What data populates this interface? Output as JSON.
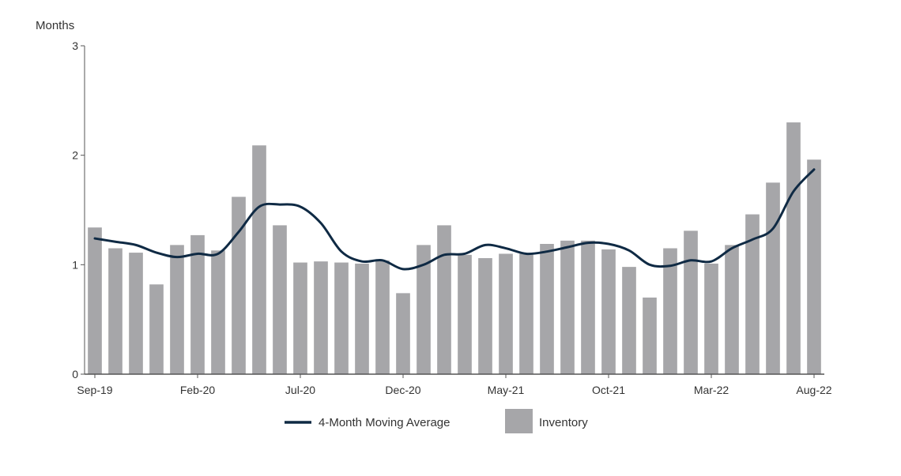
{
  "chart_data": {
    "type": "bar",
    "title": "",
    "xlabel": "",
    "ylabel": "Months",
    "ylim": [
      0,
      3
    ],
    "yticks": [
      "0",
      "1",
      "2",
      "3"
    ],
    "grid": false,
    "legend_position": "bottom",
    "categories": [
      "Sep-19",
      "Oct-19",
      "Nov-19",
      "Dec-19",
      "Jan-20",
      "Feb-20",
      "Mar-20",
      "Apr-20",
      "May-20",
      "Jun-20",
      "Jul-20",
      "Aug-20",
      "Sep-20",
      "Oct-20",
      "Nov-20",
      "Dec-20",
      "Jan-21",
      "Feb-21",
      "Mar-21",
      "Apr-21",
      "May-21",
      "Jun-21",
      "Jul-21",
      "Aug-21",
      "Sep-21",
      "Oct-21",
      "Nov-21",
      "Dec-21",
      "Jan-22",
      "Feb-22",
      "Mar-22",
      "Apr-22",
      "May-22",
      "Jun-22",
      "Jul-22",
      "Aug-22"
    ],
    "tick_labels": [
      "Sep-19",
      "Feb-20",
      "Jul-20",
      "Dec-20",
      "May-21",
      "Oct-21",
      "Mar-22",
      "Aug-22"
    ],
    "series": [
      {
        "name": "Inventory",
        "type": "bar",
        "color": "#a6a6a9",
        "values": [
          1.34,
          1.15,
          1.11,
          0.82,
          1.18,
          1.27,
          1.13,
          1.62,
          2.09,
          1.36,
          1.02,
          1.03,
          1.02,
          1.01,
          1.04,
          0.74,
          1.18,
          1.36,
          1.09,
          1.06,
          1.1,
          1.1,
          1.19,
          1.22,
          1.22,
          1.14,
          0.98,
          0.7,
          1.15,
          1.31,
          1.01,
          1.18,
          1.46,
          1.75,
          2.3,
          1.96
        ]
      },
      {
        "name": "4-Month Moving Average",
        "type": "line",
        "color": "#0f2a44",
        "values": [
          1.24,
          1.21,
          1.18,
          1.11,
          1.07,
          1.1,
          1.1,
          1.3,
          1.53,
          1.55,
          1.53,
          1.38,
          1.12,
          1.03,
          1.04,
          0.96,
          1.0,
          1.09,
          1.1,
          1.18,
          1.15,
          1.1,
          1.12,
          1.16,
          1.2,
          1.19,
          1.13,
          1.0,
          0.99,
          1.04,
          1.03,
          1.15,
          1.23,
          1.33,
          1.67,
          1.87
        ]
      }
    ]
  },
  "legend": {
    "line_label": "4-Month Moving Average",
    "bar_label": "Inventory"
  }
}
